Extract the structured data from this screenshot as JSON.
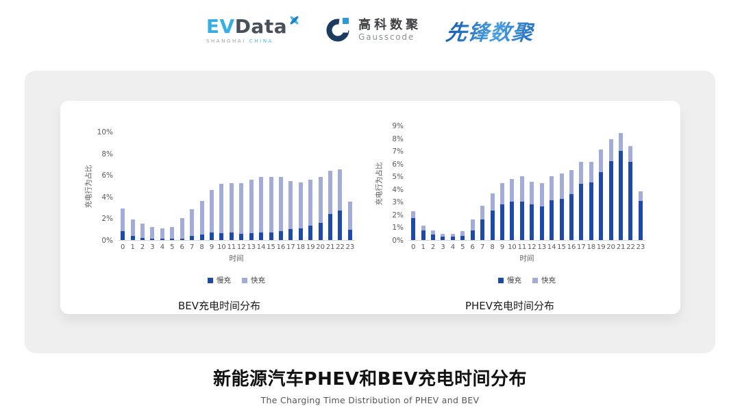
{
  "header": {
    "evdata": {
      "ev": "EV",
      "data": "Data",
      "sub_left": "SHANGHAI",
      "sub_right": "CHINA"
    },
    "gausscode": {
      "cn": "高科数聚",
      "en": "Gausscode"
    },
    "xianfeng": {
      "cn": "先锋数聚"
    }
  },
  "icons": {
    "evdata_mark": "x-propeller-icon",
    "gausscode_mark": "g-ring-icon"
  },
  "colors": {
    "slow": "#1d4aa8",
    "fast": "#a3abd8",
    "panel": "#efefef",
    "axis_text": "#595959",
    "axis_line": "#d9d9d9"
  },
  "footer": {
    "title": "新能源汽车PHEV和BEV充电时间分布",
    "subtitle": "The Charging Time Distribution of PHEV and BEV"
  },
  "chart_data": [
    {
      "type": "bar",
      "stacked": true,
      "title": "BEV充电时间分布",
      "xlabel": "时间",
      "ylabel": "充电行为占比",
      "ylim": [
        0,
        10
      ],
      "ytick_step": 2,
      "ytick_format": "percent",
      "grid": false,
      "legend_position": "bottom",
      "categories": [
        "0",
        "1",
        "2",
        "3",
        "4",
        "5",
        "6",
        "7",
        "8",
        "9",
        "10",
        "11",
        "12",
        "13",
        "14",
        "15",
        "16",
        "17",
        "18",
        "19",
        "20",
        "21",
        "22",
        "23"
      ],
      "series": [
        {
          "name": "慢充",
          "color": "#1d4aa8",
          "values": [
            0.8,
            0.35,
            0.2,
            0.1,
            0.1,
            0.1,
            0.15,
            0.35,
            0.5,
            0.7,
            0.65,
            0.7,
            0.6,
            0.65,
            0.7,
            0.7,
            0.8,
            1.0,
            1.1,
            1.3,
            1.6,
            2.4,
            2.75,
            0.95
          ]
        },
        {
          "name": "快充",
          "color": "#a3abd8",
          "values": [
            2.1,
            1.55,
            1.35,
            1.1,
            1.0,
            1.1,
            1.85,
            2.5,
            3.1,
            3.95,
            4.55,
            4.55,
            4.65,
            4.95,
            5.1,
            5.1,
            5.05,
            4.45,
            4.2,
            4.25,
            4.25,
            4.0,
            3.8,
            2.6
          ]
        }
      ]
    },
    {
      "type": "bar",
      "stacked": true,
      "title": "PHEV充电时间分布",
      "xlabel": "时间",
      "ylabel": "充电行为占比",
      "ylim": [
        0,
        9
      ],
      "ytick_step": 1,
      "ytick_format": "percent",
      "grid": false,
      "legend_position": "bottom",
      "categories": [
        "0",
        "1",
        "2",
        "3",
        "4",
        "5",
        "6",
        "7",
        "8",
        "9",
        "10",
        "11",
        "12",
        "13",
        "14",
        "15",
        "16",
        "17",
        "18",
        "19",
        "20",
        "21",
        "22",
        "23"
      ],
      "series": [
        {
          "name": "慢充",
          "color": "#1d4aa8",
          "values": [
            1.75,
            0.75,
            0.45,
            0.25,
            0.25,
            0.3,
            0.75,
            1.6,
            2.3,
            2.8,
            3.0,
            3.0,
            2.8,
            2.65,
            3.1,
            3.25,
            3.6,
            4.4,
            4.55,
            5.35,
            6.2,
            7.0,
            6.15,
            3.05
          ]
        },
        {
          "name": "快充",
          "color": "#a3abd8",
          "values": [
            0.5,
            0.4,
            0.3,
            0.25,
            0.25,
            0.4,
            0.85,
            1.1,
            1.35,
            1.7,
            1.8,
            2.0,
            1.8,
            1.85,
            1.9,
            2.0,
            1.9,
            1.75,
            1.6,
            1.75,
            1.75,
            1.4,
            1.25,
            0.8
          ]
        }
      ]
    }
  ]
}
